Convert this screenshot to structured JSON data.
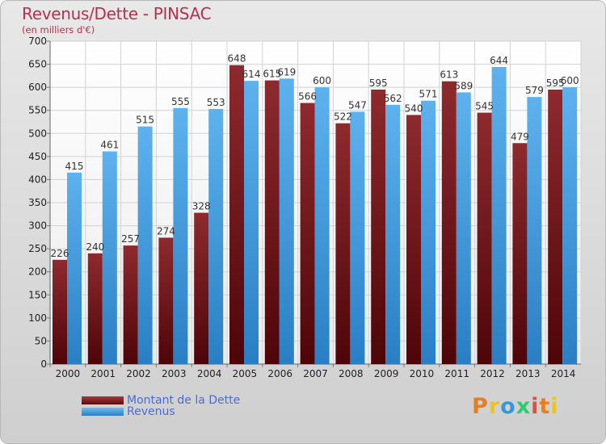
{
  "header": {
    "title": "Revenus/Dette - PINSAC",
    "subtitle": "(en milliers d'€)"
  },
  "legend": [
    {
      "label": "Montant de la Dette",
      "color": "#7a1f22"
    },
    {
      "label": "Revenus",
      "color": "#4aa3e6"
    }
  ],
  "branding": {
    "logo_text": "Proxiti",
    "logo_colors": [
      "#e67e22",
      "#f1c40f",
      "#3498db",
      "#2ecc71",
      "#e74c3c"
    ]
  },
  "chart_data": {
    "type": "bar",
    "title": "Revenus/Dette - PINSAC",
    "subtitle": "(en milliers d'€)",
    "categories": [
      "2000",
      "2001",
      "2002",
      "2003",
      "2004",
      "2005",
      "2006",
      "2007",
      "2008",
      "2009",
      "2010",
      "2011",
      "2012",
      "2013",
      "2014"
    ],
    "series": [
      {
        "name": "Montant de la Dette",
        "color": "#7a1f22",
        "values": [
          226,
          240,
          257,
          274,
          328,
          648,
          615,
          566,
          522,
          595,
          540,
          613,
          545,
          479,
          595
        ]
      },
      {
        "name": "Revenus",
        "color": "#4aa3e6",
        "values": [
          415,
          461,
          515,
          555,
          553,
          614,
          619,
          600,
          547,
          562,
          571,
          589,
          644,
          579,
          600
        ]
      }
    ],
    "ylim": [
      0,
      700
    ],
    "yticks": [
      0,
      50,
      100,
      150,
      200,
      250,
      300,
      350,
      400,
      450,
      500,
      550,
      600,
      650,
      700
    ],
    "grid": true,
    "legend_position": "bottom-left"
  }
}
